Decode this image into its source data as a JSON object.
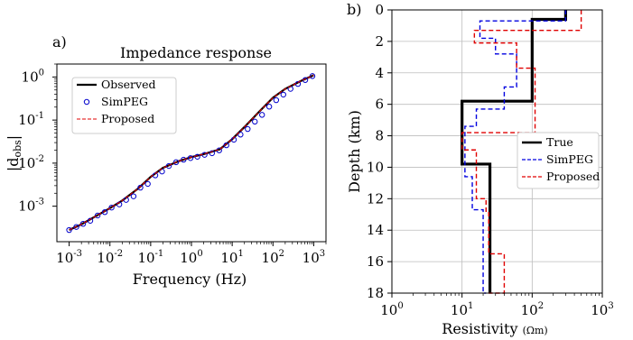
{
  "chart_data": [
    {
      "panel_label": "a)",
      "type": "line",
      "title": "Impedance response",
      "xlabel": "Frequency (Hz)",
      "ylabel_parts": [
        "|d",
        "obs",
        "|"
      ],
      "xscale": "log",
      "yscale": "log",
      "xlim": [
        0.0005,
        2000
      ],
      "ylim": [
        0.00015,
        2.0
      ],
      "x_ticks": [
        {
          "base": "10",
          "exp": "-3"
        },
        {
          "base": "10",
          "exp": "-2"
        },
        {
          "base": "10",
          "exp": "-1"
        },
        {
          "base": "10",
          "exp": "0"
        },
        {
          "base": "10",
          "exp": "1"
        },
        {
          "base": "10",
          "exp": "2"
        },
        {
          "base": "10",
          "exp": "3"
        }
      ],
      "y_ticks": [
        {
          "base": "10",
          "exp": "-3"
        },
        {
          "base": "10",
          "exp": "-2"
        },
        {
          "base": "10",
          "exp": "-1"
        },
        {
          "base": "10",
          "exp": "0"
        }
      ],
      "legend_position": "upper-left",
      "grid": false,
      "series": [
        {
          "name": "Observed",
          "style": "solid",
          "color": "#000000",
          "x": [
            0.001,
            0.002,
            0.005,
            0.01,
            0.02,
            0.05,
            0.1,
            0.2,
            0.5,
            1,
            2,
            5,
            10,
            20,
            50,
            100,
            200,
            500,
            1000
          ],
          "y": [
            0.00028,
            0.00038,
            0.00062,
            0.0009,
            0.00135,
            0.0026,
            0.0048,
            0.0078,
            0.0112,
            0.0138,
            0.0162,
            0.021,
            0.036,
            0.069,
            0.17,
            0.33,
            0.53,
            0.82,
            1.1
          ]
        },
        {
          "name": "SimPEG",
          "style": "circle",
          "color": "#0000cc",
          "x": [
            0.001,
            0.0015,
            0.0022,
            0.0033,
            0.005,
            0.0075,
            0.011,
            0.017,
            0.025,
            0.038,
            0.056,
            0.085,
            0.13,
            0.19,
            0.28,
            0.42,
            0.64,
            0.95,
            1.4,
            2.1,
            3.2,
            4.8,
            7.2,
            11,
            16,
            24,
            36,
            54,
            81,
            120,
            180,
            270,
            410,
            620,
            930
          ],
          "y": [
            0.00028,
            0.00033,
            0.00039,
            0.00046,
            0.00061,
            0.00073,
            0.00093,
            0.0011,
            0.0014,
            0.0017,
            0.0027,
            0.0033,
            0.0052,
            0.0064,
            0.0086,
            0.0105,
            0.012,
            0.0131,
            0.0141,
            0.0156,
            0.017,
            0.0198,
            0.026,
            0.035,
            0.046,
            0.062,
            0.092,
            0.132,
            0.205,
            0.29,
            0.39,
            0.53,
            0.69,
            0.85,
            1.05
          ]
        },
        {
          "name": "Proposed",
          "style": "dashed",
          "color": "#e00000",
          "x": [
            0.001,
            0.002,
            0.005,
            0.01,
            0.02,
            0.05,
            0.1,
            0.2,
            0.5,
            1,
            2,
            5,
            10,
            20,
            50,
            100,
            200,
            500,
            1000
          ],
          "y": [
            0.00028,
            0.00038,
            0.00062,
            0.0009,
            0.00135,
            0.0026,
            0.0048,
            0.0078,
            0.0112,
            0.0138,
            0.0162,
            0.021,
            0.036,
            0.069,
            0.17,
            0.33,
            0.53,
            0.82,
            1.1
          ]
        }
      ]
    },
    {
      "panel_label": "b)",
      "type": "line",
      "xlabel": "Resistivity",
      "xunit": "(Ωm)",
      "ylabel": "Depth (km)",
      "xscale": "log",
      "xlim": [
        1,
        1000
      ],
      "ylim": [
        18,
        0
      ],
      "x_ticks": [
        {
          "base": "10",
          "exp": "0"
        },
        {
          "base": "10",
          "exp": "1"
        },
        {
          "base": "10",
          "exp": "2"
        },
        {
          "base": "10",
          "exp": "3"
        }
      ],
      "y_ticks": [
        "0",
        "2",
        "4",
        "6",
        "8",
        "10",
        "12",
        "14",
        "16",
        "18"
      ],
      "legend_position": "center-right",
      "grid": true,
      "series": [
        {
          "name": "True",
          "style": "solid",
          "color": "#000000",
          "resistivity": [
            300,
            100,
            100,
            10,
            10,
            25,
            25
          ],
          "depth": [
            0,
            0.6,
            2.0,
            5.8,
            9.8,
            9.8,
            18
          ]
        },
        {
          "name": "SimPEG",
          "style": "dashed",
          "color": "#0000e0",
          "resistivity": [
            300,
            18,
            30,
            60,
            40,
            16,
            11,
            14,
            20,
            22
          ],
          "depth": [
            0,
            0.7,
            1.8,
            2.8,
            4.9,
            6.3,
            7.4,
            10.6,
            12.7,
            18
          ]
        },
        {
          "name": "Proposed",
          "style": "dashed",
          "color": "#e00000",
          "resistivity": [
            500,
            15,
            60,
            110,
            10,
            16,
            22,
            24,
            40,
            24
          ],
          "depth": [
            0,
            1.3,
            2.1,
            3.7,
            7.8,
            8.9,
            12.0,
            12.8,
            15.5,
            18
          ]
        }
      ]
    }
  ]
}
